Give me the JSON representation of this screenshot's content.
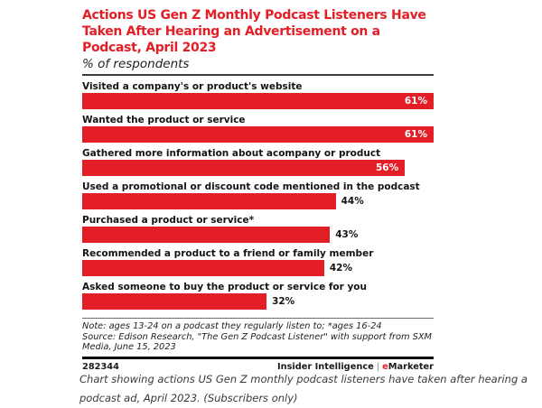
{
  "chart": {
    "title_lines": [
      "Actions US Gen Z Monthly Podcast Listeners Have",
      "Taken After Hearing an Advertisement on a",
      "Podcast, April 2023"
    ],
    "subtitle": "% of respondents",
    "note": "Note: ages 13-24 on a podcast they regularly listen to; *ages 16-24",
    "source": "Source: Edison Research, \"The Gen Z Podcast Listener\" with support from SXM Media, June 15, 2023",
    "chart_id": "282344",
    "brand_left": "Insider Intelligence",
    "brand_separator": "|",
    "brand_e": "e",
    "brand_rest": "Marketer",
    "colors": {
      "accent_red": "#e41e26",
      "text_dark": "#141414"
    }
  },
  "chart_data": {
    "type": "bar",
    "orientation": "horizontal",
    "title": "Actions US Gen Z Monthly Podcast Listeners Have Taken After Hearing an Advertisement on a Podcast, April 2023",
    "ylabel": "",
    "xlabel": "% of respondents",
    "categories": [
      "Visited a company's or product's website",
      "Wanted the product or service",
      "Gathered more information about acompany or product",
      "Used a promotional or discount code mentioned in the podcast",
      "Purchased a product or service*",
      "Recommended a product to a friend or family member",
      "Asked someone to buy the product or service for you"
    ],
    "values": [
      61,
      61,
      56,
      44,
      43,
      42,
      32
    ],
    "value_labels": [
      "61%",
      "61%",
      "56%",
      "44%",
      "43%",
      "42%",
      "32%"
    ],
    "xlim": [
      0,
      61
    ],
    "bar_color": "#e41e26",
    "grid": false,
    "legend": false
  },
  "caption": {
    "text": "Chart showing actions US Gen Z monthly podcast listeners have taken after hearing a podcast ad, April 2023. (Subscribers only)"
  }
}
